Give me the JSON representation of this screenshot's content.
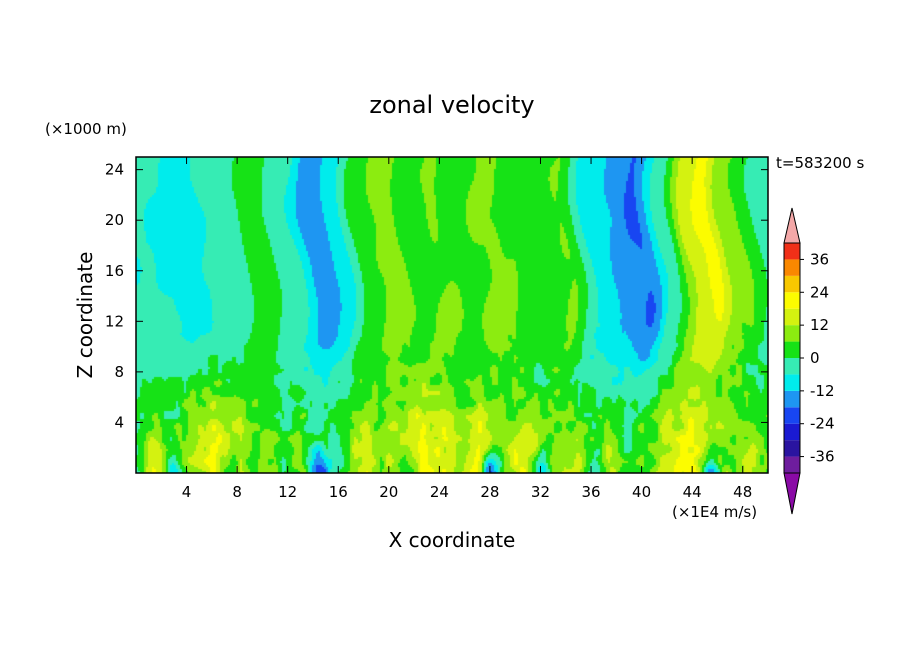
{
  "chart_data": {
    "type": "heatmap",
    "title": "zonal velocity",
    "xlabel": "X coordinate",
    "ylabel": "Z coordinate",
    "y_units_label": "(×1000 m)",
    "time_label": "t=583200 s",
    "colorbar_units_label": "(×1E4 m/s)",
    "xlim": [
      0,
      50
    ],
    "ylim": [
      0,
      25
    ],
    "xticks": [
      4,
      8,
      12,
      16,
      20,
      24,
      28,
      32,
      36,
      40,
      44,
      48
    ],
    "yticks": [
      4,
      8,
      12,
      16,
      20,
      24
    ],
    "colorbar": {
      "range": [
        -42,
        42
      ],
      "step": 6,
      "ticks": [
        36,
        24,
        12,
        0,
        -12,
        -24,
        -36
      ],
      "levels": [
        {
          "min": -42,
          "max": -36,
          "color": "#6e1d9e"
        },
        {
          "min": -36,
          "max": -30,
          "color": "#2a14a0"
        },
        {
          "min": -30,
          "max": -24,
          "color": "#1a1ad2"
        },
        {
          "min": -24,
          "max": -18,
          "color": "#1846f2"
        },
        {
          "min": -18,
          "max": -12,
          "color": "#1e96f2"
        },
        {
          "min": -12,
          "max": -6,
          "color": "#00ecec"
        },
        {
          "min": -6,
          "max": 0,
          "color": "#36ecb4"
        },
        {
          "min": 0,
          "max": 6,
          "color": "#16e216"
        },
        {
          "min": 6,
          "max": 12,
          "color": "#8cec10"
        },
        {
          "min": 12,
          "max": 18,
          "color": "#d4f210"
        },
        {
          "min": 18,
          "max": 24,
          "color": "#fcfc00"
        },
        {
          "min": 24,
          "max": 30,
          "color": "#f8c800"
        },
        {
          "min": 30,
          "max": 36,
          "color": "#fa8800"
        },
        {
          "min": 36,
          "max": 42,
          "color": "#f03018"
        }
      ],
      "under_color": "#8a0aa6",
      "over_color": "#f4a8a8"
    },
    "upper_profile": {
      "x": [
        0,
        4,
        8,
        9.5,
        12,
        14.5,
        16,
        18,
        20,
        22,
        24,
        26,
        28,
        30,
        32,
        34,
        36,
        38,
        40,
        42,
        44,
        45.5,
        47,
        50
      ],
      "u": [
        -5,
        -7,
        -2,
        4,
        -4,
        -17,
        -10,
        3,
        9,
        3,
        7,
        4,
        8,
        5,
        2,
        6,
        -8,
        -13,
        -18,
        -2,
        15,
        20,
        8,
        -3
      ]
    },
    "lower_peaks_x": [
      1.5,
      4,
      6,
      8,
      10.5,
      13,
      15.5,
      18,
      20.5,
      22.5,
      24.5,
      27,
      29,
      31,
      33,
      35,
      37.5,
      40,
      42,
      44,
      46.5,
      49
    ],
    "lower_peaks_u": [
      18,
      10,
      20,
      14,
      8,
      12,
      4,
      16,
      12,
      20,
      14,
      22,
      8,
      18,
      6,
      14,
      20,
      10,
      16,
      14,
      8,
      12
    ],
    "lower_troughs_x": [
      3,
      7.5,
      14.5,
      21.5,
      28,
      32,
      36.5,
      45.5
    ],
    "lower_troughs_u": [
      -16,
      -14,
      -20,
      -16,
      -32,
      -22,
      -18,
      -26
    ]
  }
}
